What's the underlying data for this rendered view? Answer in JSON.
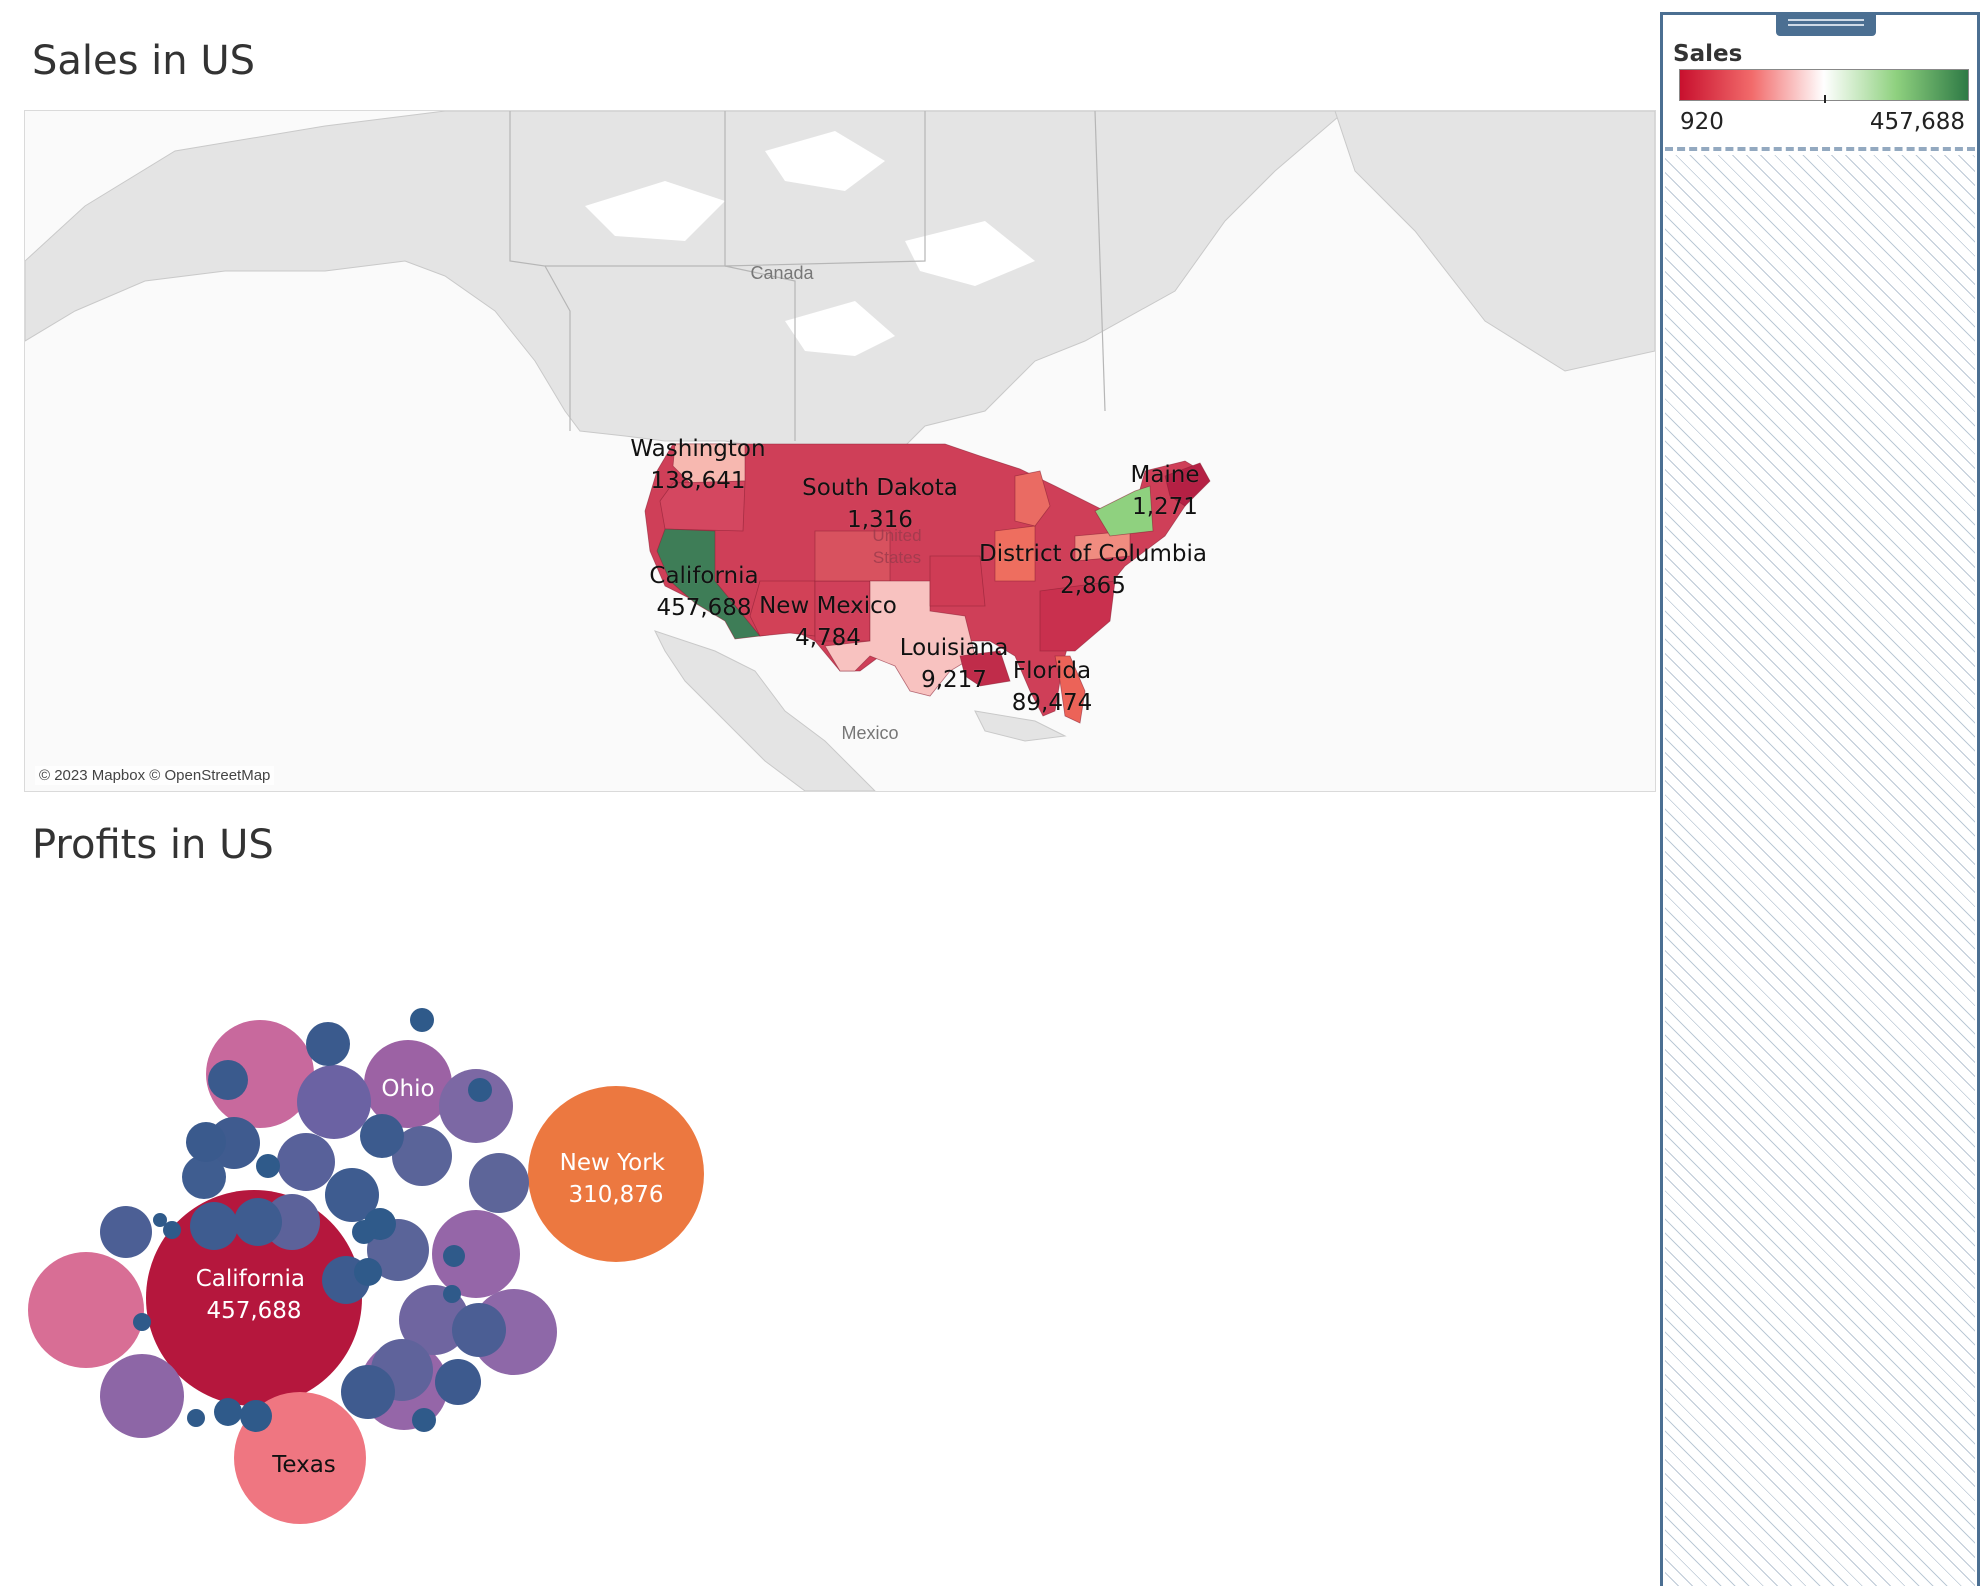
{
  "sales_sheet": {
    "title": "Sales in US",
    "credit": "© 2023 Mapbox © OpenStreetMap",
    "place_labels": {
      "canada": "Canada",
      "mexico": "Mexico",
      "united_states": "United States"
    },
    "state_labels": [
      {
        "state": "Washington",
        "value": "138,641"
      },
      {
        "state": "South Dakota",
        "value": "1,316"
      },
      {
        "state": "Maine",
        "value": "1,271"
      },
      {
        "state": "California",
        "value": "457,688"
      },
      {
        "state": "District of Columbia",
        "value": "2,865"
      },
      {
        "state": "New Mexico",
        "value": "4,784"
      },
      {
        "state": "Louisiana",
        "value": "9,217"
      },
      {
        "state": "Florida",
        "value": "89,474"
      }
    ]
  },
  "profit_sheet": {
    "title": "Profits in US",
    "bubble_labels": [
      {
        "state": "California",
        "value": "457,688"
      },
      {
        "state": "New York",
        "value": "310,876"
      },
      {
        "state": "Texas",
        "value": ""
      },
      {
        "state": "Ohio",
        "value": ""
      }
    ]
  },
  "legend": {
    "title": "Sales",
    "min_label": "920",
    "max_label": "457,688",
    "min": 920,
    "max": 457688,
    "colors": [
      "#c8102e",
      "#f26b6b",
      "#ffffff",
      "#8fd17f",
      "#2e7a45"
    ]
  },
  "chart_data": {
    "type": "choropleth",
    "measure": "Sales",
    "color_range": [
      920,
      457688
    ],
    "labeled_states": [
      {
        "state": "California",
        "sales": 457688
      },
      {
        "state": "Washington",
        "sales": 138641
      },
      {
        "state": "Florida",
        "sales": 89474
      },
      {
        "state": "Louisiana",
        "sales": 9217
      },
      {
        "state": "New Mexico",
        "sales": 4784
      },
      {
        "state": "District of Columbia",
        "sales": 2865
      },
      {
        "state": "South Dakota",
        "sales": 1316
      },
      {
        "state": "Maine",
        "sales": 1271
      }
    ]
  }
}
